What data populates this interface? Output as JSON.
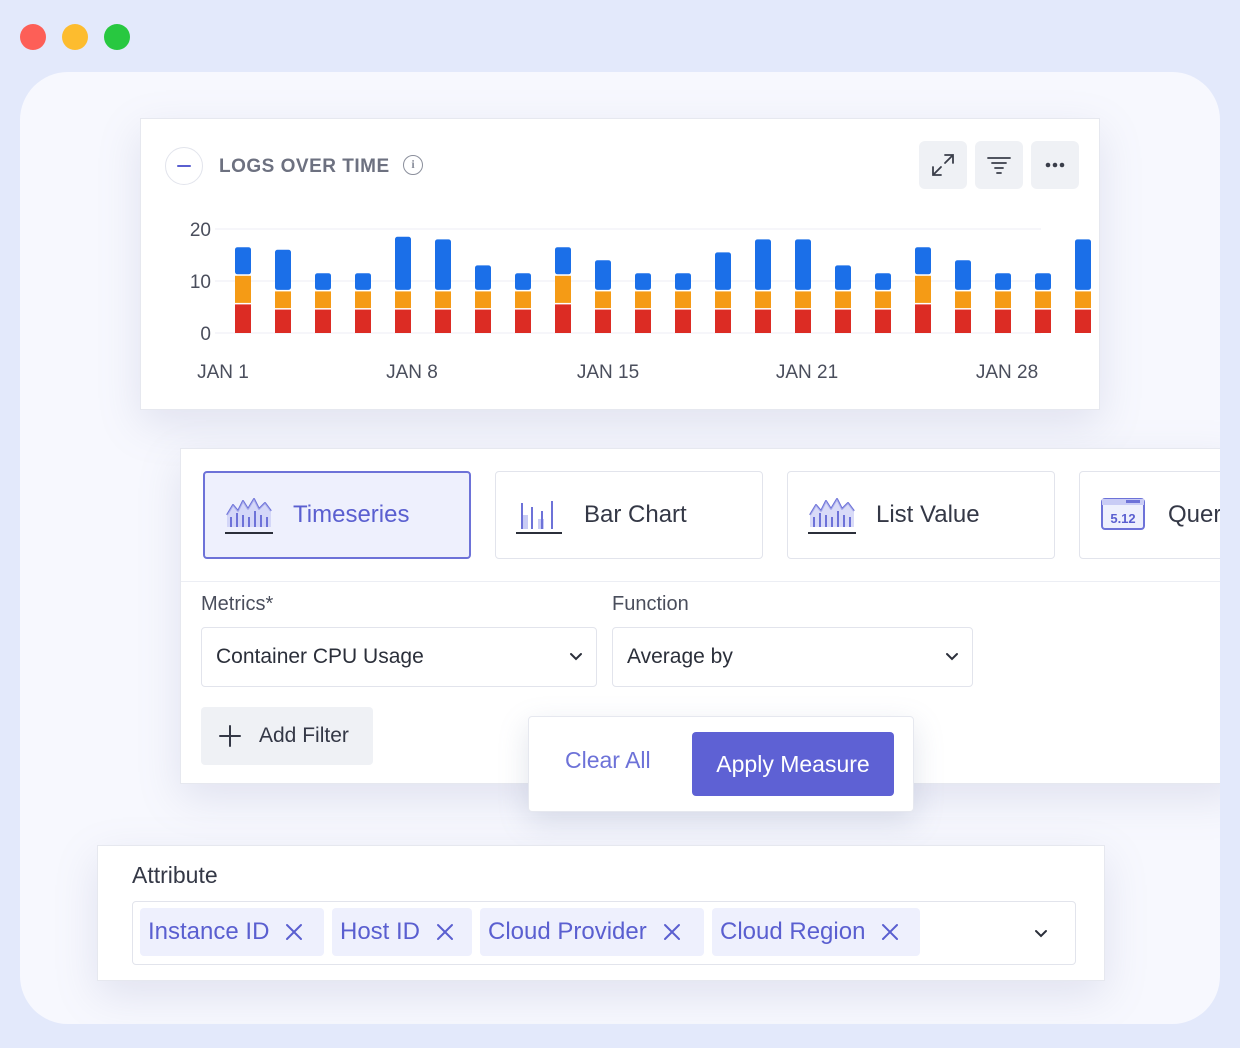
{
  "window": {
    "controls": [
      "close",
      "minimize",
      "maximize"
    ],
    "colors": {
      "close": "#fd5f57",
      "minimize": "#fdbc2e",
      "maximize": "#28c840"
    }
  },
  "chart_panel": {
    "title": "LOGS OVER TIME",
    "toolbar": [
      "expand-icon",
      "filter-lines-icon",
      "more-horizontal-icon"
    ]
  },
  "chart_data": {
    "type": "bar",
    "stacked": true,
    "yticks": [
      0,
      10,
      20
    ],
    "ylim": [
      0,
      20
    ],
    "xtick_labels": [
      "JAN 1",
      "JAN 8",
      "JAN 15",
      "JAN 21",
      "JAN 28"
    ],
    "grid": true,
    "series": [
      {
        "color": "#dc2c24",
        "values": [
          5.5,
          4.5,
          4.5,
          4.5,
          4.5,
          4.5,
          4.5,
          4.5,
          5.5,
          4.5,
          4.5,
          4.5,
          4.5,
          4.5,
          4.5,
          4.5,
          4.5,
          5.5,
          4.5,
          4.5,
          4.5,
          4.5
        ]
      },
      {
        "color": "#f59b15",
        "values": [
          5.5,
          3.5,
          3.5,
          3.5,
          3.5,
          3.5,
          3.5,
          3.5,
          5.5,
          3.5,
          3.5,
          3.5,
          3.5,
          3.5,
          3.5,
          3.5,
          3.5,
          5.5,
          3.5,
          3.5,
          3.5,
          3.5
        ]
      },
      {
        "color": "#1b6fe8",
        "values": [
          5.5,
          8.0,
          3.5,
          3.5,
          10.5,
          10.0,
          5.0,
          3.5,
          5.5,
          6.0,
          3.5,
          3.5,
          7.5,
          10.0,
          10.0,
          5.0,
          3.5,
          5.5,
          6.0,
          3.5,
          3.5,
          10.0
        ]
      }
    ]
  },
  "viz_types": [
    {
      "label": "Timeseries",
      "icon": "timeseries-icon",
      "active": true
    },
    {
      "label": "Bar Chart",
      "icon": "bar-chart-icon",
      "active": false
    },
    {
      "label": "List Value",
      "icon": "list-value-icon",
      "active": false
    },
    {
      "label": "Quer",
      "icon": "query-value-icon",
      "icon_text": "5.12",
      "active": false
    }
  ],
  "form": {
    "metrics": {
      "label": "Metrics*",
      "value": "Container CPU Usage"
    },
    "function": {
      "label": "Function",
      "value": "Average by"
    },
    "add_filter_label": "Add Filter"
  },
  "actions": {
    "clear_label": "Clear All",
    "apply_label": "Apply Measure"
  },
  "attributes": {
    "label": "Attribute",
    "tags": [
      "Instance ID",
      "Host ID",
      "Cloud Provider",
      "Cloud Region"
    ]
  },
  "colors": {
    "accent": "#5e61d4",
    "accent_soft": "#eef0fd",
    "background": "#e3e9fb"
  }
}
